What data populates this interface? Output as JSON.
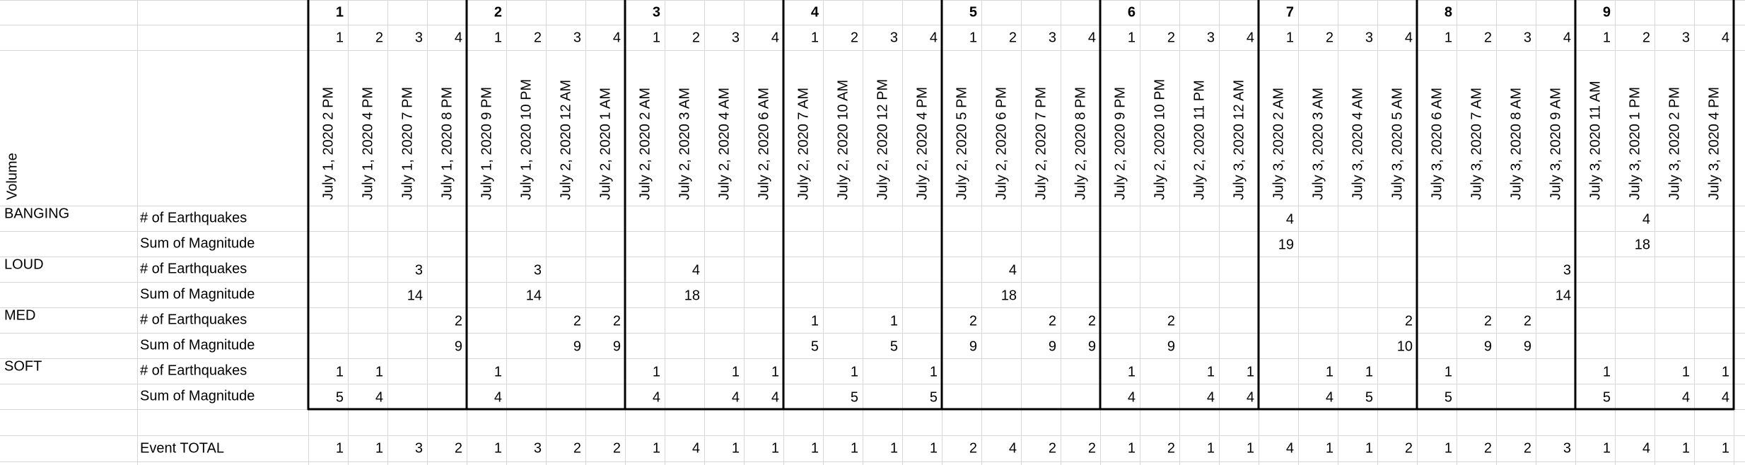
{
  "header": {
    "row_label": "Volume",
    "groups": [
      1,
      2,
      3,
      4,
      5,
      6,
      7,
      8,
      9
    ],
    "sub_index": [
      1,
      2,
      3,
      4,
      1,
      2,
      3,
      4,
      1,
      2,
      3,
      4,
      1,
      2,
      3,
      4,
      1,
      2,
      3,
      4,
      1,
      2,
      3,
      4,
      1,
      2,
      3,
      4,
      1,
      2,
      3,
      4,
      1,
      2,
      3,
      4
    ],
    "dates": [
      "July 1, 2020 2 PM",
      "July 1, 2020 4 PM",
      "July 1, 2020 7 PM",
      "July 1, 2020 8 PM",
      "July 1, 2020 9 PM",
      "July 1, 2020 10 PM",
      "July 2, 2020 12 AM",
      "July 2, 2020 1 AM",
      "July 2, 2020 2 AM",
      "July 2, 2020 3 AM",
      "July 2, 2020 4 AM",
      "July 2, 2020 6 AM",
      "July 2, 2020 7 AM",
      "July 2, 2020 10 AM",
      "July 2, 2020 12 PM",
      "July 2, 2020 4 PM",
      "July 2, 2020 5 PM",
      "July 2, 2020 6 PM",
      "July 2, 2020 7 PM",
      "July 2, 2020 8 PM",
      "July 2, 2020 9 PM",
      "July 2, 2020 10 PM",
      "July 2, 2020 11 PM",
      "July 3, 2020 12 AM",
      "July 3, 2020 2 AM",
      "July 3, 2020 3 AM",
      "July 3, 2020 4 AM",
      "July 3, 2020 5 AM",
      "July 3, 2020 6 AM",
      "July 3, 2020 7 AM",
      "July 3, 2020 8 AM",
      "July 3, 2020 9 AM",
      "July 3, 2020 11 AM",
      "July 3, 2020 1 PM",
      "July 3, 2020 2 PM",
      "July 3, 2020 4 PM"
    ]
  },
  "sections": [
    {
      "name": "BANGING",
      "color": "#e5404f",
      "rows": [
        {
          "label": "# of Earthquakes",
          "values": [
            null,
            null,
            null,
            null,
            null,
            null,
            null,
            null,
            null,
            null,
            null,
            null,
            null,
            null,
            null,
            null,
            null,
            null,
            null,
            null,
            null,
            null,
            null,
            null,
            4,
            null,
            null,
            null,
            null,
            null,
            null,
            null,
            null,
            4,
            null,
            null
          ]
        },
        {
          "label": "Sum of Magnitude",
          "values": [
            null,
            null,
            null,
            null,
            null,
            null,
            null,
            null,
            null,
            null,
            null,
            null,
            null,
            null,
            null,
            null,
            null,
            null,
            null,
            null,
            null,
            null,
            null,
            null,
            19,
            null,
            null,
            null,
            null,
            null,
            null,
            null,
            null,
            18,
            null,
            null
          ]
        }
      ]
    },
    {
      "name": "LOUD",
      "color": "#2f6ea5",
      "rows": [
        {
          "label": "# of Earthquakes",
          "values": [
            null,
            null,
            3,
            null,
            null,
            3,
            null,
            null,
            null,
            4,
            null,
            null,
            null,
            null,
            null,
            null,
            null,
            4,
            null,
            null,
            null,
            null,
            null,
            null,
            null,
            null,
            null,
            null,
            null,
            null,
            null,
            3,
            null,
            null,
            null,
            null
          ]
        },
        {
          "label": "Sum of Magnitude",
          "values": [
            null,
            null,
            14,
            null,
            null,
            14,
            null,
            null,
            null,
            18,
            null,
            null,
            null,
            null,
            null,
            null,
            null,
            18,
            null,
            null,
            null,
            null,
            null,
            null,
            null,
            null,
            null,
            null,
            null,
            null,
            null,
            14,
            null,
            null,
            null,
            null
          ]
        }
      ]
    },
    {
      "name": "MED",
      "color": "#f2861f",
      "rows": [
        {
          "label": "# of Earthquakes",
          "values": [
            null,
            null,
            null,
            2,
            null,
            null,
            2,
            2,
            null,
            null,
            null,
            null,
            1,
            null,
            1,
            null,
            2,
            null,
            2,
            2,
            null,
            2,
            null,
            null,
            null,
            null,
            null,
            2,
            null,
            2,
            2,
            null,
            null,
            null,
            null,
            null
          ]
        },
        {
          "label": "Sum of Magnitude",
          "values": [
            null,
            null,
            null,
            9,
            null,
            null,
            9,
            9,
            null,
            null,
            null,
            null,
            5,
            null,
            5,
            null,
            9,
            null,
            9,
            9,
            null,
            9,
            null,
            null,
            null,
            null,
            null,
            10,
            null,
            9,
            9,
            null,
            null,
            null,
            null,
            null
          ]
        }
      ]
    },
    {
      "name": "SOFT",
      "color": "#4db3a6",
      "rows": [
        {
          "label": "# of Earthquakes",
          "values": [
            1,
            1,
            null,
            null,
            1,
            null,
            null,
            null,
            1,
            null,
            1,
            1,
            null,
            1,
            null,
            1,
            null,
            null,
            null,
            null,
            1,
            null,
            1,
            1,
            null,
            1,
            1,
            null,
            1,
            null,
            null,
            null,
            1,
            null,
            1,
            1
          ]
        },
        {
          "label": "Sum of Magnitude",
          "values": [
            5,
            4,
            null,
            null,
            4,
            null,
            null,
            null,
            4,
            null,
            4,
            4,
            null,
            5,
            null,
            5,
            null,
            null,
            null,
            null,
            4,
            null,
            4,
            4,
            null,
            4,
            5,
            null,
            5,
            null,
            null,
            null,
            5,
            null,
            4,
            4
          ]
        }
      ]
    }
  ],
  "total": {
    "label": "Event TOTAL",
    "values": [
      1,
      1,
      3,
      2,
      1,
      3,
      2,
      2,
      1,
      4,
      1,
      1,
      1,
      1,
      1,
      1,
      2,
      4,
      2,
      2,
      1,
      2,
      1,
      1,
      4,
      1,
      1,
      2,
      1,
      2,
      2,
      3,
      1,
      4,
      1,
      1
    ]
  }
}
